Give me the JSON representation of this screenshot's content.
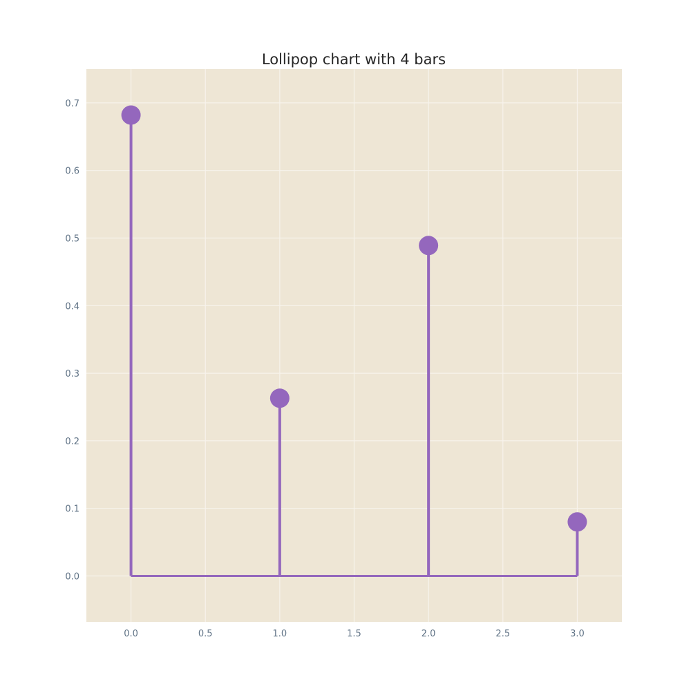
{
  "chart_data": {
    "type": "lollipop",
    "title": "Lollipop chart with 4 bars",
    "xlabel": "",
    "ylabel": "",
    "x": [
      0,
      1,
      2,
      3
    ],
    "values": [
      0.682,
      0.263,
      0.489,
      0.08
    ],
    "baseline": 0.0,
    "xlim": [
      -0.3,
      3.3
    ],
    "ylim": [
      -0.068,
      0.75
    ],
    "x_ticks": [
      0.0,
      0.5,
      1.0,
      1.5,
      2.0,
      2.5,
      3.0
    ],
    "x_tick_labels": [
      "0.0",
      "0.5",
      "1.0",
      "1.5",
      "2.0",
      "2.5",
      "3.0"
    ],
    "y_ticks": [
      0.0,
      0.1,
      0.2,
      0.3,
      0.4,
      0.5,
      0.6,
      0.7
    ],
    "y_tick_labels": [
      "0.0",
      "0.1",
      "0.2",
      "0.3",
      "0.4",
      "0.5",
      "0.6",
      "0.7"
    ],
    "grid": true,
    "legend": "none",
    "colors": {
      "series": "#9467bd",
      "plot_background": "#eee6d5",
      "grid": "#f7f3ec",
      "tick_text": "#5f7285",
      "title_text": "#262626"
    }
  }
}
